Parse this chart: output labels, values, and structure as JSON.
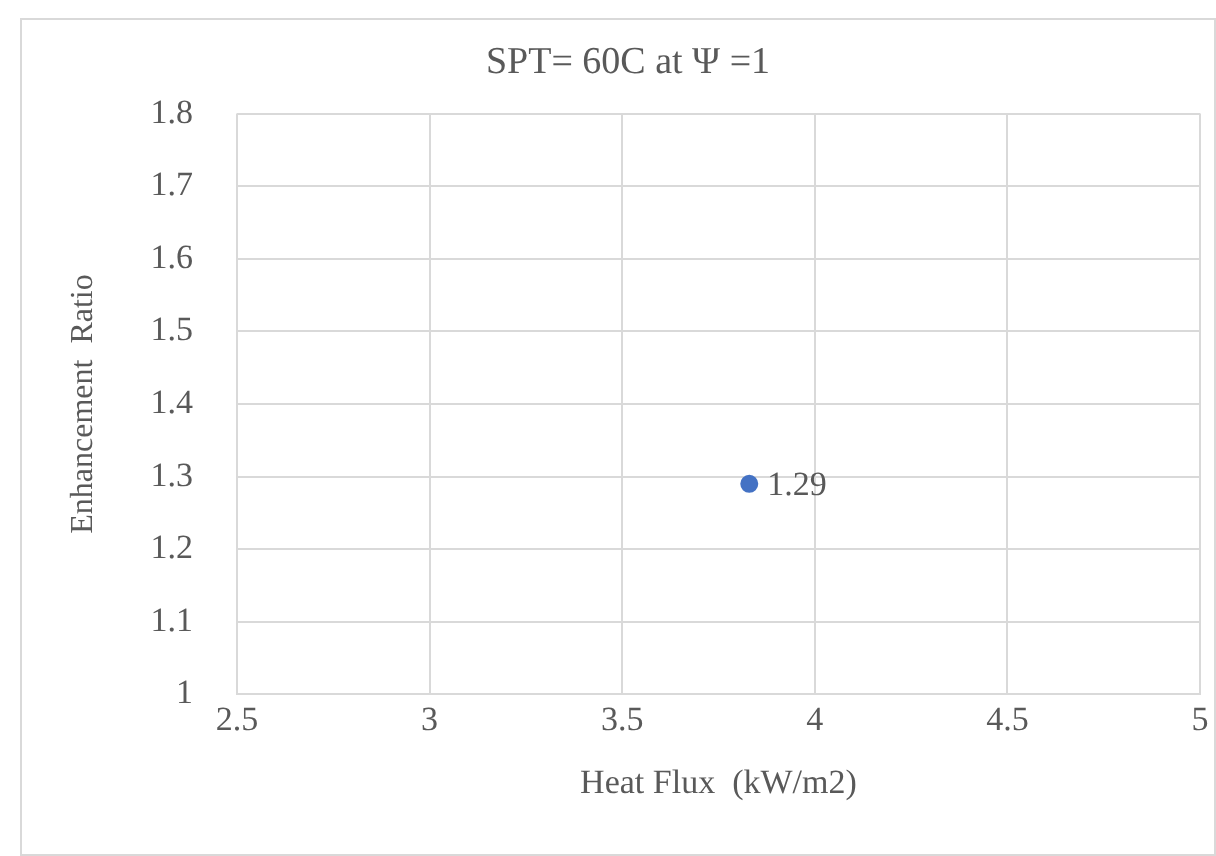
{
  "chart_data": {
    "type": "scatter",
    "title": "SPT= 60C at Ψ =1",
    "xlabel": "Heat Flux  (kW/m2)",
    "ylabel": "Enhancement  Ratio",
    "x": [
      3.83
    ],
    "values": [
      1.29
    ],
    "color": "#4472c4",
    "data_labels": true,
    "marker": "circle",
    "xlim": [
      2.5,
      5
    ],
    "xticks": [
      2.5,
      3,
      3.5,
      4,
      4.5,
      5
    ],
    "ylim": [
      1,
      1.8
    ],
    "yticks": [
      1,
      1.1,
      1.2,
      1.3,
      1.4,
      1.5,
      1.6,
      1.7,
      1.8
    ],
    "grid": true,
    "legend": false
  }
}
